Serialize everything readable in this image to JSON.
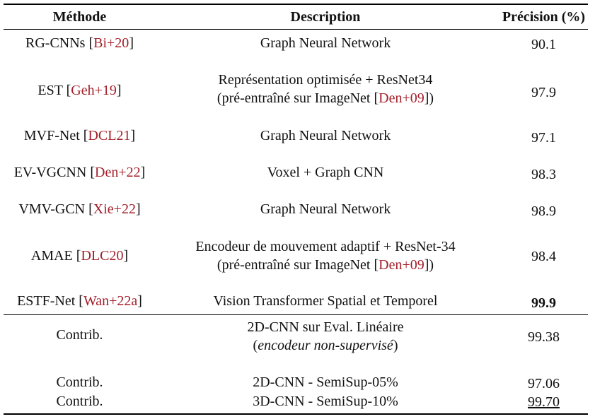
{
  "header": {
    "method": "Méthode",
    "description": "Description",
    "precision": "Précision (%)"
  },
  "rows": [
    {
      "method": "RG-CNNs",
      "cite": "Bi+20",
      "desc1": "Graph Neural Network",
      "precision": "90.1"
    },
    {
      "method": "EST",
      "cite": "Geh+19",
      "desc1": "Représentation optimisée + ResNet34",
      "desc2_pre": "(pré-entraîné sur ImageNet [",
      "desc2_cite": "Den+09",
      "desc2_post": "])",
      "precision": "97.9"
    },
    {
      "method": "MVF-Net",
      "cite": "DCL21",
      "desc1": "Graph Neural Network",
      "precision": "97.1"
    },
    {
      "method": "EV-VGCNN",
      "cite": "Den+22",
      "desc1": "Voxel + Graph CNN",
      "precision": "98.3"
    },
    {
      "method": "VMV-GCN",
      "cite": "Xie+22",
      "desc1": "Graph Neural Network",
      "precision": "98.9"
    },
    {
      "method": "AMAE",
      "cite": "DLC20",
      "desc1": "Encodeur de mouvement adaptif + ResNet-34",
      "desc2_pre": "(pré-entraîné sur ImageNet [",
      "desc2_cite": "Den+09",
      "desc2_post": "])",
      "precision": "98.4"
    },
    {
      "method": "ESTF-Net",
      "cite": "Wan+22a",
      "desc1": "Vision Transformer Spatial et Temporel",
      "precision": "99.9"
    }
  ],
  "contrib": [
    {
      "method": "Contrib.",
      "desc1": "2D-CNN sur Eval. Linéaire",
      "desc2": "encodeur non-supervisé",
      "precision": "99.38"
    },
    {
      "method": "Contrib.",
      "desc1": "2D-CNN - SemiSup-05%",
      "precision": "97.06"
    },
    {
      "method": "Contrib.",
      "desc1": "3D-CNN - SemiSup-10%",
      "precision": "99.70"
    }
  ]
}
